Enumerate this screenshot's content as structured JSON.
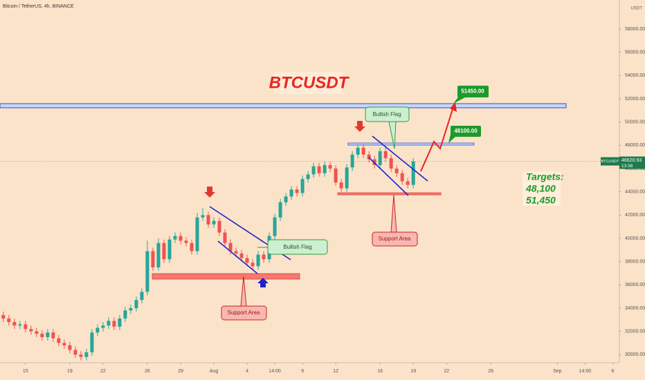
{
  "header": "Bitcoin / TetherUS, 4h, BINANCE",
  "currency": "USDT",
  "chart_data": {
    "type": "candlestick",
    "title": "BTCUSDT",
    "up_color": "#26a69a",
    "down_color": "#ef5350",
    "x": [
      -2.5,
      -2,
      -1.5,
      -1,
      -0.5,
      0,
      0.5,
      1,
      1.5,
      2,
      2.5,
      3,
      3.5,
      4,
      4.5,
      5,
      5.5,
      6,
      6.5,
      7,
      7.5,
      8,
      8.5,
      9,
      9.5,
      10,
      10.5,
      11,
      11.5,
      12,
      12.5,
      13,
      13.5,
      14,
      14.5,
      15,
      15.5,
      16,
      16.5,
      17,
      17.5,
      18,
      18.5,
      19,
      19.5,
      20,
      20.5,
      21,
      21.5,
      22,
      22.5,
      23,
      23.5,
      24,
      24.5,
      25,
      25.5,
      26,
      26.5,
      27,
      27.5,
      28,
      28.5,
      29,
      29.5,
      30,
      30.5,
      31,
      31.5,
      32,
      32.5,
      33,
      33.5,
      34,
      34.5,
      35
    ],
    "open": [
      33600,
      33400,
      33100,
      32800,
      32500,
      32600,
      32200,
      32000,
      31800,
      31500,
      31900,
      31400,
      31000,
      30800,
      30400,
      30000,
      29800,
      30200,
      31900,
      32300,
      32500,
      32900,
      32400,
      33100,
      33800,
      34000,
      34700,
      35400,
      38900,
      37500,
      39600,
      38200,
      39900,
      40200,
      39800,
      39600,
      38900,
      41800,
      42000,
      41200,
      41500,
      40500,
      39600,
      38900,
      38700,
      38300,
      37900,
      37600,
      38600,
      38200,
      40200,
      41800,
      43100,
      43600,
      44200,
      43900,
      45100,
      45500,
      46200,
      45600,
      46300,
      46000,
      44800,
      44300,
      46100,
      47200,
      47800,
      47200,
      46800,
      46300,
      47500,
      46900,
      46000,
      45600,
      44900,
      44600
    ],
    "high": [
      33900,
      33700,
      33400,
      33100,
      32900,
      32900,
      32500,
      32300,
      32100,
      32200,
      32200,
      31700,
      31300,
      31100,
      30700,
      30300,
      30500,
      32200,
      32600,
      32800,
      33200,
      33200,
      33400,
      34100,
      34300,
      35000,
      35700,
      39800,
      39200,
      40000,
      39900,
      40200,
      40500,
      40500,
      40100,
      39900,
      42200,
      42600,
      42300,
      41800,
      41800,
      40800,
      39900,
      39200,
      39000,
      38600,
      38200,
      38900,
      38900,
      40500,
      42100,
      43400,
      43900,
      44500,
      44500,
      45400,
      45800,
      46500,
      46500,
      46600,
      46600,
      46300,
      45100,
      46400,
      47500,
      48100,
      48100,
      47500,
      47100,
      47800,
      47800,
      47200,
      46300,
      45900,
      45200,
      46900
    ],
    "low": [
      33100,
      32800,
      32500,
      32200,
      32200,
      31900,
      31700,
      31500,
      31200,
      31200,
      31100,
      30700,
      30500,
      30100,
      29700,
      29500,
      29500,
      29900,
      31600,
      32000,
      32200,
      32100,
      32100,
      32800,
      33500,
      33700,
      34400,
      35100,
      37200,
      37200,
      37900,
      37900,
      39600,
      39500,
      39300,
      38600,
      38600,
      41500,
      40900,
      40900,
      40200,
      39300,
      38600,
      38400,
      38000,
      37600,
      37300,
      37300,
      37900,
      37900,
      39900,
      41500,
      42800,
      43300,
      43600,
      43600,
      44800,
      45200,
      45300,
      45300,
      45700,
      44500,
      44000,
      44000,
      45800,
      46900,
      46900,
      46500,
      46000,
      46000,
      46600,
      45700,
      45300,
      44600,
      44300,
      44300
    ],
    "close": [
      33400,
      33100,
      32800,
      32500,
      32600,
      32200,
      32000,
      31800,
      31500,
      31900,
      31400,
      31000,
      30800,
      30400,
      30000,
      29800,
      30200,
      31900,
      32300,
      32500,
      32900,
      32400,
      33100,
      33800,
      34000,
      34700,
      35400,
      38900,
      37500,
      39600,
      38200,
      39900,
      40200,
      39800,
      39600,
      38900,
      41800,
      42000,
      41200,
      41500,
      40500,
      39600,
      38900,
      38700,
      38300,
      37900,
      37600,
      38600,
      38200,
      40200,
      41800,
      43100,
      43600,
      44200,
      43900,
      45100,
      45500,
      46200,
      45600,
      46300,
      46000,
      44800,
      44300,
      46100,
      47200,
      47800,
      47200,
      46800,
      46300,
      47500,
      46900,
      46000,
      45600,
      44900,
      44600,
      46620.93
    ],
    "xlim": [
      -2.3,
      53.6
    ],
    "ylim": [
      29300,
      60500
    ],
    "xticks": [
      {
        "value": 0,
        "label": "15"
      },
      {
        "value": 4,
        "label": "19"
      },
      {
        "value": 7,
        "label": "22"
      },
      {
        "value": 11,
        "label": "26"
      },
      {
        "value": 14,
        "label": "29"
      },
      {
        "value": 17,
        "label": "Aug"
      },
      {
        "value": 20,
        "label": "4"
      },
      {
        "value": 22.5,
        "label": "14:00"
      },
      {
        "value": 25,
        "label": "9"
      },
      {
        "value": 28,
        "label": "12"
      },
      {
        "value": 32,
        "label": "16"
      },
      {
        "value": 35,
        "label": "19"
      },
      {
        "value": 38,
        "label": "22"
      },
      {
        "value": 42,
        "label": "26"
      },
      {
        "value": 48,
        "label": "Sep"
      },
      {
        "value": 50.5,
        "label": "14:00"
      },
      {
        "value": 53,
        "label": "6"
      }
    ],
    "yticks": [
      {
        "value": 30000,
        "label": "30000.00"
      },
      {
        "value": 32000,
        "label": "32000.00"
      },
      {
        "value": 34000,
        "label": "34000.00"
      },
      {
        "value": 36000,
        "label": "36000.00"
      },
      {
        "value": 38000,
        "label": "38000.00"
      },
      {
        "value": 40000,
        "label": "40000.00"
      },
      {
        "value": 42000,
        "label": "42000.00"
      },
      {
        "value": 44000,
        "label": "44000.00"
      },
      {
        "value": 46000,
        "label": "46000.00"
      },
      {
        "value": 48000,
        "label": "48000.00"
      },
      {
        "value": 50000,
        "label": "50000.00"
      },
      {
        "value": 52000,
        "label": "52000.00"
      },
      {
        "value": 54000,
        "label": "54000.00"
      },
      {
        "value": 56000,
        "label": "56000.00"
      },
      {
        "value": 58000,
        "label": "58000.00"
      }
    ],
    "symbol_label": "BTCUSDT",
    "last_price": 46620.93,
    "countdown": "13:38",
    "annotations": {
      "bullish_flag": [
        "Bullish Flag",
        "Bullish Flag"
      ],
      "support_area": [
        "Support Area",
        "Support Area"
      ],
      "levels": [
        {
          "value": 48100,
          "label": "48100.00"
        },
        {
          "value": 51450,
          "label": "51450.00"
        }
      ],
      "targets_title": "Targets:",
      "targets": [
        {
          "value": 48100,
          "label": "48,100"
        },
        {
          "value": 51450,
          "label": "51,450"
        }
      ]
    }
  }
}
